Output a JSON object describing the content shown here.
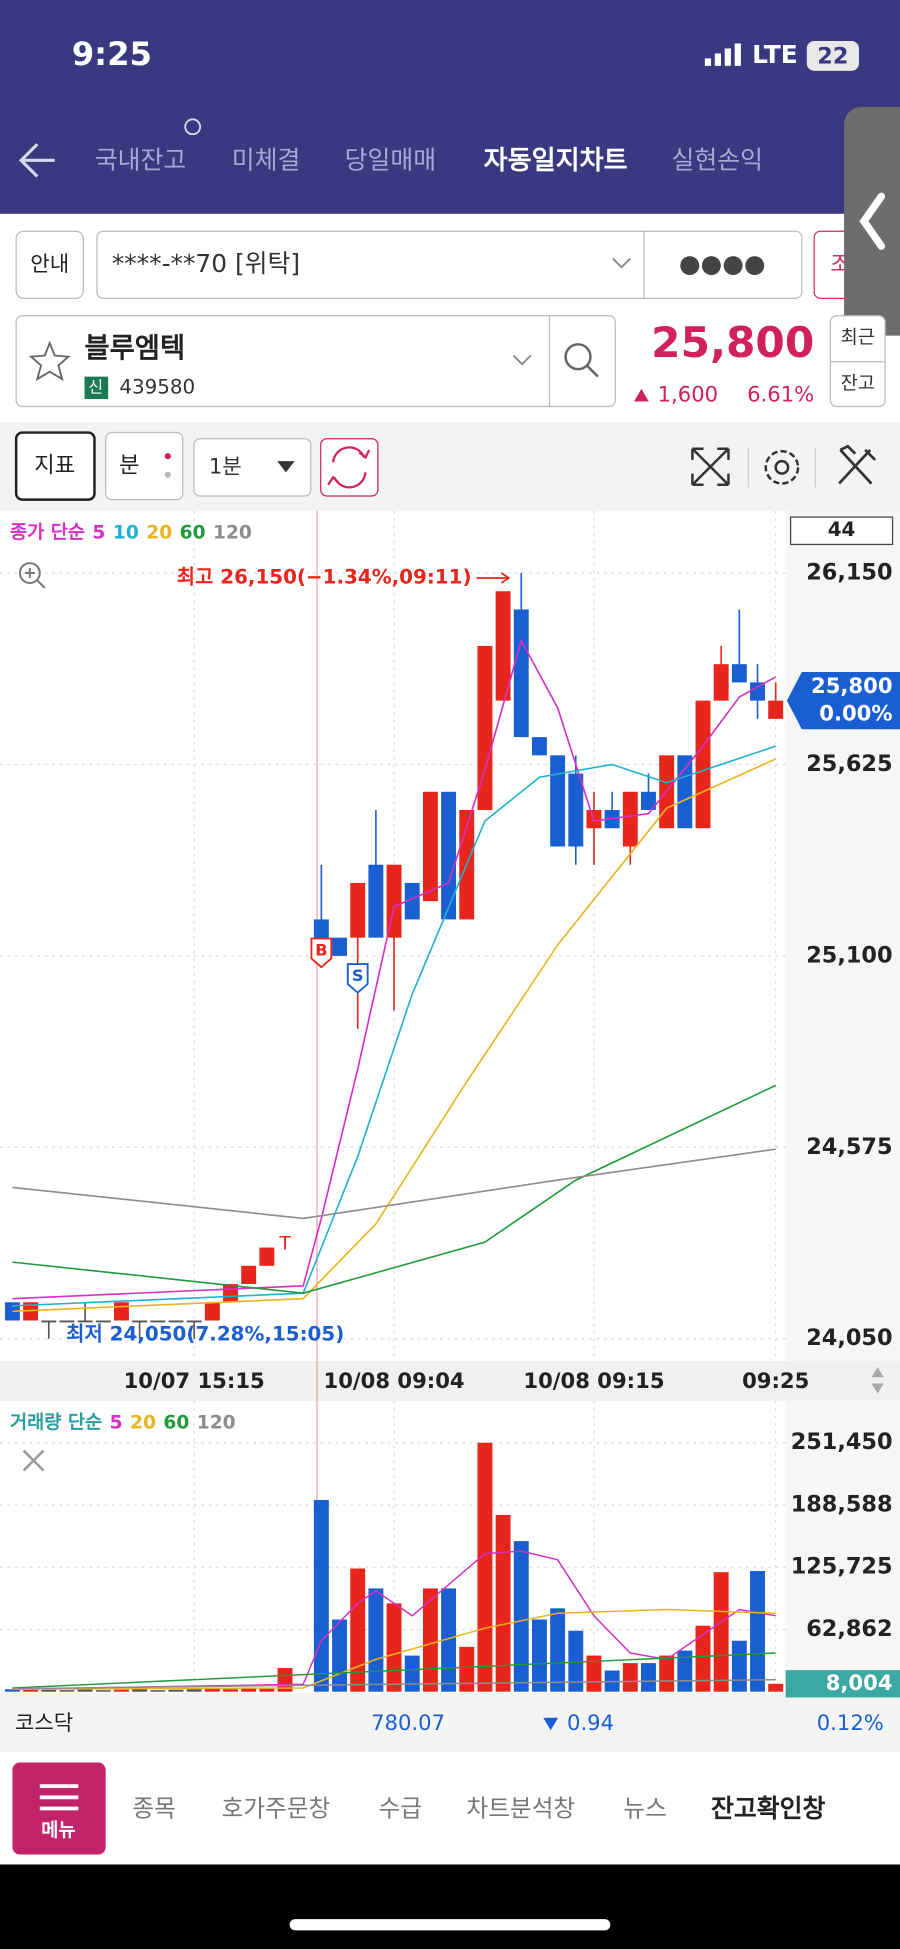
{
  "status_bar": {
    "time": "9:25",
    "network": "LTE",
    "battery": "22"
  },
  "tabs": [
    "국내잔고",
    "미체결",
    "당일매매",
    "자동일지차트",
    "실현손익"
  ],
  "account": {
    "guide": "안내",
    "number": "****-**70 [위탁]",
    "password": "●●●●",
    "side_button": "조"
  },
  "stock": {
    "name": "블루엠텍",
    "badge": "신",
    "code": "439580",
    "price": "25,800",
    "change": "1,600",
    "change_rate": "6.61%",
    "buttons": [
      "최근",
      "잔고"
    ]
  },
  "toolbar": {
    "indicator": "지표",
    "period_type": "분",
    "interval": "1분"
  },
  "price_chart": {
    "type": "candlestick",
    "legend_title": "종가 단순",
    "count_label": "44",
    "ylim": [
      24000,
      26315
    ],
    "yticks": [
      {
        "value": 24050,
        "label": "24,050"
      },
      {
        "value": 24575,
        "label": "24,575"
      },
      {
        "value": 25100,
        "label": "25,100"
      },
      {
        "value": 25625,
        "label": "25,625"
      },
      {
        "value": 26150,
        "label": "26,150"
      }
    ],
    "xticks": [
      {
        "value": 10,
        "label": "10/07 15:15"
      },
      {
        "value": 21,
        "label": "10/08 09:04"
      },
      {
        "value": 32,
        "label": "10/08 09:15"
      },
      {
        "value": 42,
        "label": "09:25"
      }
    ],
    "up_color": "#e8251b",
    "down_color": "#1a5fd1",
    "candles": {
      "open": [
        24150,
        24100,
        24100,
        24100,
        24100,
        24100,
        24100,
        24100,
        24100,
        24100,
        24100,
        24100,
        24150,
        24200,
        24250,
        null,
        null,
        25200,
        25150,
        25150,
        25350,
        25150,
        25300,
        25250,
        25550,
        25200,
        25500,
        25800,
        26050,
        25700,
        25650,
        25600,
        25450,
        25500,
        25400,
        25550,
        25450,
        25650,
        25450,
        25800,
        25900,
        25850,
        25750
      ],
      "high": [
        24150,
        24150,
        24100,
        24100,
        24150,
        24100,
        24150,
        24100,
        24100,
        24100,
        24100,
        24150,
        24200,
        24250,
        24300,
        null,
        null,
        25350,
        25150,
        25300,
        25500,
        25350,
        25300,
        25550,
        25550,
        25500,
        25950,
        26100,
        26150,
        25700,
        25650,
        25650,
        25550,
        25550,
        25550,
        25600,
        25650,
        25650,
        25800,
        25950,
        26050,
        25900,
        25850
      ],
      "low": [
        24100,
        24100,
        24050,
        24100,
        24100,
        24100,
        24100,
        24050,
        24100,
        24100,
        24050,
        24100,
        24150,
        24200,
        24250,
        null,
        null,
        25100,
        25100,
        24900,
        25150,
        24950,
        25200,
        25250,
        25200,
        25200,
        25500,
        25800,
        25700,
        25650,
        25400,
        25350,
        25350,
        25450,
        25350,
        25500,
        25450,
        25450,
        25450,
        25800,
        25850,
        25750,
        25750
      ],
      "close": [
        24100,
        24150,
        24100,
        24100,
        24100,
        24100,
        24150,
        24100,
        24100,
        24100,
        24100,
        24150,
        24200,
        24250,
        24300,
        null,
        null,
        25100,
        25100,
        25300,
        25150,
        25350,
        25200,
        25550,
        25200,
        25500,
        25950,
        26100,
        25700,
        25650,
        25400,
        25400,
        25500,
        25450,
        25550,
        25500,
        25650,
        25450,
        25800,
        25900,
        25850,
        25800,
        25800
      ]
    },
    "moving_averages": [
      {
        "name": "5",
        "color": "#d62fc4",
        "x": [
          0,
          16,
          17,
          19,
          21,
          24,
          26,
          28,
          30,
          32,
          35,
          38,
          40,
          42
        ],
        "values": [
          24160,
          24195,
          24380,
          24790,
          25235,
          25300,
          25610,
          25965,
          25780,
          25470,
          25490,
          25675,
          25810,
          25865
        ]
      },
      {
        "name": "10",
        "color": "#1fb2d0",
        "x": [
          0,
          16,
          19,
          22,
          26,
          29,
          33,
          36,
          42
        ],
        "values": [
          24140,
          24175,
          24550,
          24995,
          25470,
          25590,
          25625,
          25575,
          25675
        ]
      },
      {
        "name": "20",
        "color": "#e8b51e",
        "x": [
          0,
          16,
          20,
          25,
          30,
          36,
          42
        ],
        "values": [
          24125,
          24160,
          24365,
          24755,
          25130,
          25505,
          25640
        ]
      },
      {
        "name": "60",
        "color": "#1f9a3c",
        "x": [
          0,
          16,
          26,
          31,
          42
        ],
        "values": [
          24260,
          24175,
          24315,
          24485,
          24745
        ]
      },
      {
        "name": "120",
        "color": "#8c8c8c",
        "x": [
          0,
          16,
          30,
          42
        ],
        "values": [
          24465,
          24380,
          24485,
          24570
        ]
      }
    ],
    "annotations": [
      {
        "text": "최고 26,150(−1.34%,09:11)",
        "index": 28,
        "value": 26150,
        "color": "#e8251b"
      },
      {
        "text": "최저 24,050(7.28%,15:05)",
        "index": 2,
        "value": 24050,
        "color": "#1a5fd1"
      }
    ],
    "markers": [
      {
        "label": "B",
        "index": 17,
        "value": 25110,
        "color": "#e8251b"
      },
      {
        "label": "S",
        "index": 19,
        "value": 25040,
        "color": "#1a5fd1"
      },
      {
        "label": "T",
        "index": 15,
        "value": 24310,
        "color": "#e8251b"
      }
    ],
    "price_tag": {
      "value": 25800,
      "label": "25,800",
      "change": "0.00%"
    }
  },
  "volume_chart": {
    "type": "bar",
    "legend_title": "거래량 단순",
    "ylim": [
      0,
      290000
    ],
    "yticks": [
      {
        "value": 62862,
        "label": "62,862"
      },
      {
        "value": 125725,
        "label": "125,725"
      },
      {
        "value": 188588,
        "label": "188,588"
      },
      {
        "value": 251450,
        "label": "251,450"
      }
    ],
    "values": [
      2500,
      3000,
      2000,
      1500,
      2500,
      1500,
      2000,
      3000,
      1500,
      2000,
      2500,
      3000,
      2500,
      3500,
      3000,
      23900,
      null,
      193600,
      72900,
      124400,
      104300,
      89200,
      36500,
      104300,
      104300,
      45300,
      251450,
      178500,
      152100,
      72900,
      84200,
      61600,
      36500,
      21400,
      28900,
      28900,
      36500,
      41500,
      66600,
      120700,
      51500,
      121900,
      8004
    ],
    "last_value_label": "8,004",
    "last_color": "#3aa9a4",
    "moving_averages": [
      {
        "name": "5",
        "color": "#d62fc4",
        "x": [
          0,
          16,
          17,
          19,
          20,
          22,
          26,
          28,
          30,
          32,
          34,
          36,
          38,
          40,
          42
        ],
        "values": [
          2500,
          7500,
          51500,
          89200,
          101800,
          76700,
          139500,
          142000,
          133200,
          76700,
          39000,
          32700,
          57800,
          83000,
          76700
        ]
      },
      {
        "name": "20",
        "color": "#e8b51e",
        "x": [
          0,
          16,
          20,
          26,
          30,
          36,
          42
        ],
        "values": [
          2500,
          3800,
          32700,
          64100,
          79200,
          83000,
          79200
        ]
      },
      {
        "name": "60",
        "color": "#1f9a3c",
        "x": [
          0,
          42
        ],
        "values": [
          3800,
          39000
        ]
      },
      {
        "name": "120",
        "color": "#8c8c8c",
        "x": [
          0,
          42
        ],
        "values": [
          3000,
          12000
        ]
      }
    ]
  },
  "market_bar": {
    "name": "코스닥",
    "value": "780.07",
    "change": "0.94",
    "change_rate": "0.12%"
  },
  "bottom_nav": {
    "menu": "메뉴",
    "items": [
      "종목",
      "호가주문창",
      "수급",
      "차트분석창",
      "뉴스",
      "잔고확인창"
    ]
  }
}
